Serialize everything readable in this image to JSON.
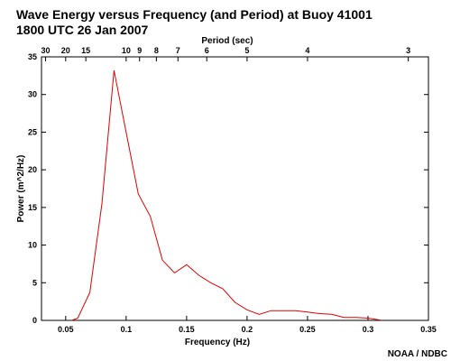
{
  "chart_data": {
    "type": "line",
    "title": "Wave Energy versus Frequency (and Period) at Buoy 41001",
    "subtitle": "1800 UTC  26 Jan 2007",
    "xlabel": "Frequency (Hz)",
    "ylabel": "Power (m^2/Hz)",
    "x2label": "Period (sec)",
    "credit": "NOAA / NDBC",
    "xlim": [
      0.03,
      0.35
    ],
    "ylim": [
      0,
      35
    ],
    "xticks": [
      0.05,
      0.1,
      0.15,
      0.2,
      0.25,
      0.3,
      0.35
    ],
    "xtick_labels": [
      "0.05",
      "0.1",
      "0.15",
      "0.2",
      "0.25",
      "0.3",
      "0.35"
    ],
    "yticks": [
      0,
      5,
      10,
      15,
      20,
      25,
      30,
      35
    ],
    "ytick_labels": [
      "0",
      "5",
      "10",
      "15",
      "20",
      "25",
      "30",
      "35"
    ],
    "period_ticks": [
      {
        "label": "30",
        "value": 30
      },
      {
        "label": "20",
        "value": 20
      },
      {
        "label": "15",
        "value": 15
      },
      {
        "label": "10",
        "value": 10
      },
      {
        "label": "9",
        "value": 9
      },
      {
        "label": "8",
        "value": 8
      },
      {
        "label": "7",
        "value": 7
      },
      {
        "label": "6",
        "value": 6
      },
      {
        "label": "5",
        "value": 5
      },
      {
        "label": "4",
        "value": 4
      },
      {
        "label": "3",
        "value": 3
      }
    ],
    "grid": false,
    "series": [
      {
        "color": "#e00000",
        "x": [
          0.055,
          0.06,
          0.07,
          0.08,
          0.09,
          0.1,
          0.11,
          0.12,
          0.13,
          0.14,
          0.15,
          0.16,
          0.17,
          0.18,
          0.19,
          0.2,
          0.21,
          0.22,
          0.23,
          0.24,
          0.25,
          0.26,
          0.27,
          0.28,
          0.29,
          0.3,
          0.31
        ],
        "y": [
          0.0,
          0.3,
          3.7,
          15.5,
          33.2,
          25.0,
          16.8,
          13.8,
          8.0,
          6.3,
          7.4,
          6.0,
          5.0,
          4.2,
          2.4,
          1.4,
          0.8,
          1.3,
          1.3,
          1.3,
          1.1,
          0.9,
          0.8,
          0.4,
          0.4,
          0.3,
          0.05
        ]
      }
    ]
  }
}
